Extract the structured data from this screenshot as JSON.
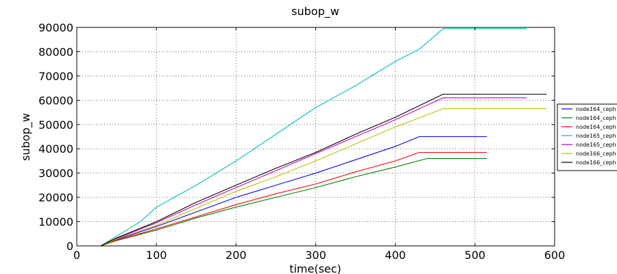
{
  "chart_data": {
    "type": "line",
    "title": "subop_w",
    "xlabel": "time(sec)",
    "ylabel": "subop_w",
    "xlim": [
      0,
      600
    ],
    "ylim": [
      0,
      90000
    ],
    "xticks": [
      0,
      100,
      200,
      300,
      400,
      500,
      600
    ],
    "yticks": [
      0,
      10000,
      20000,
      30000,
      40000,
      50000,
      60000,
      70000,
      80000,
      90000
    ],
    "grid": true,
    "legend_position": "right",
    "series": [
      {
        "name": "node164_ceph",
        "color": "#0000ff",
        "x": [
          30,
          50,
          100,
          150,
          200,
          250,
          300,
          350,
          400,
          430,
          515
        ],
        "y": [
          0,
          2600,
          8000,
          14000,
          20000,
          25000,
          30000,
          35500,
          41000,
          45000,
          45000
        ]
      },
      {
        "name": "node164_ceph",
        "color": "#008000",
        "x": [
          30,
          50,
          100,
          150,
          200,
          250,
          300,
          350,
          400,
          440,
          515
        ],
        "y": [
          0,
          2200,
          6500,
          11500,
          16000,
          20000,
          24000,
          28500,
          32500,
          36000,
          36000
        ]
      },
      {
        "name": "node164_ceph",
        "color": "#ff0000",
        "x": [
          30,
          50,
          100,
          150,
          200,
          250,
          300,
          350,
          400,
          430,
          515
        ],
        "y": [
          0,
          2300,
          7000,
          12000,
          17000,
          21500,
          25500,
          30500,
          35000,
          38500,
          38500
        ]
      },
      {
        "name": "node165_ceph",
        "color": "#00bfbf",
        "x": [
          30,
          50,
          80,
          100,
          150,
          200,
          250,
          300,
          350,
          400,
          430,
          460,
          565
        ],
        "y": [
          0,
          4000,
          10000,
          16000,
          25000,
          35000,
          46000,
          57000,
          66000,
          76000,
          81000,
          89500,
          89500
        ]
      },
      {
        "name": "node165_ceph",
        "color": "#bf00bf",
        "x": [
          30,
          50,
          100,
          150,
          200,
          250,
          300,
          350,
          400,
          460,
          565
        ],
        "y": [
          0,
          3000,
          9500,
          17000,
          24000,
          31000,
          38000,
          45000,
          52000,
          61000,
          61000
        ]
      },
      {
        "name": "node166_ceph",
        "color": "#bfbf00",
        "x": [
          30,
          50,
          100,
          150,
          200,
          250,
          300,
          350,
          400,
          460,
          590
        ],
        "y": [
          0,
          2800,
          8500,
          15500,
          22500,
          28500,
          35000,
          42000,
          49000,
          56500,
          56500
        ]
      },
      {
        "name": "node166_ceph",
        "color": "#000000",
        "x": [
          30,
          50,
          100,
          150,
          200,
          250,
          300,
          350,
          400,
          460,
          590
        ],
        "y": [
          0,
          3300,
          10000,
          18000,
          25000,
          32000,
          38500,
          46000,
          53000,
          62500,
          62500
        ]
      }
    ]
  }
}
